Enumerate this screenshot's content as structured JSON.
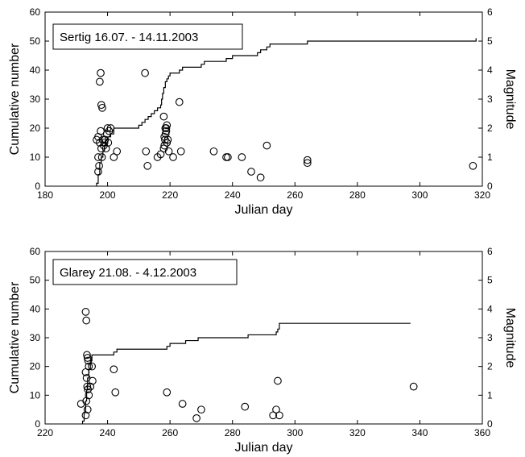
{
  "chart_data": [
    {
      "type": "scatter",
      "title": "Sertig 16.07. - 14.11.2003",
      "xlabel": "Julian day",
      "ylabel": "Cumulative number",
      "y2label": "Magnitude",
      "xlim": [
        180,
        320
      ],
      "ylim": [
        0,
        60
      ],
      "y2lim": [
        0,
        6
      ],
      "xticks": [
        "180",
        "200",
        "220",
        "240",
        "260",
        "280",
        "300",
        "320"
      ],
      "yticks": [
        "0",
        "10",
        "20",
        "30",
        "40",
        "50",
        "60"
      ],
      "y2ticks": [
        "0",
        "1",
        "2",
        "3",
        "4",
        "5",
        "6"
      ],
      "grid": false,
      "legend_box": "top-left",
      "cumulative_step": {
        "x": [
          196.5,
          197,
          197.5,
          198,
          198.5,
          199,
          199.5,
          200,
          201,
          202,
          210,
          211,
          212,
          213,
          214,
          215,
          216,
          217,
          217.3,
          217.6,
          218,
          218.5,
          219,
          219.5,
          220,
          223,
          224,
          230,
          231,
          238,
          240,
          248,
          249,
          251,
          252,
          264,
          264.5,
          318
        ],
        "y": [
          1,
          4,
          8,
          10,
          12,
          14,
          16,
          17,
          18,
          20,
          21,
          22,
          23,
          24,
          25,
          26,
          27,
          28,
          30,
          32,
          34,
          36,
          37,
          38,
          39,
          40,
          41,
          42,
          43,
          44,
          45,
          46,
          47,
          48,
          49,
          50,
          50,
          51
        ]
      },
      "magnitude_events": {
        "x": [
          196.5,
          197,
          197,
          197.3,
          197.5,
          197.8,
          198,
          198.2,
          198.5,
          198.8,
          199,
          199.2,
          199.5,
          199.8,
          200,
          200.2,
          200.5,
          201,
          202,
          203,
          197.5,
          198,
          198.3,
          197.8,
          197,
          212,
          212.3,
          212.8,
          216,
          217,
          218,
          218.2,
          218.4,
          218.6,
          218.8,
          219,
          218,
          218.5,
          219,
          219.3,
          219.6,
          218.2,
          218.8,
          221,
          223,
          223.5,
          234,
          238,
          238.5,
          243,
          246,
          249,
          251,
          264,
          264,
          317
        ],
        "y": [
          1.6,
          1.7,
          1.0,
          0.7,
          1.5,
          1.9,
          1.3,
          1.0,
          1.6,
          1.4,
          1.5,
          1.6,
          1.3,
          1.8,
          2.0,
          1.5,
          1.9,
          2.0,
          1.0,
          1.2,
          3.6,
          2.8,
          2.7,
          3.9,
          0.5,
          3.9,
          1.2,
          0.7,
          1.0,
          1.1,
          1.3,
          1.4,
          1.6,
          1.8,
          2.0,
          2.1,
          2.4,
          2.0,
          1.5,
          1.6,
          1.2,
          1.7,
          1.9,
          1.0,
          2.9,
          1.2,
          1.2,
          1.0,
          1.0,
          1.0,
          0.5,
          0.3,
          1.4,
          0.9,
          0.8,
          0.7
        ]
      }
    },
    {
      "type": "scatter",
      "title": "Glarey 21.08. - 4.12.2003",
      "xlabel": "Julian day",
      "ylabel": "Cumulative number",
      "y2label": "Magnitude",
      "xlim": [
        220,
        360
      ],
      "ylim": [
        0,
        60
      ],
      "y2lim": [
        0,
        6
      ],
      "xticks": [
        "220",
        "240",
        "260",
        "280",
        "300",
        "320",
        "340",
        "360"
      ],
      "yticks": [
        "0",
        "10",
        "20",
        "30",
        "40",
        "50",
        "60"
      ],
      "y2ticks": [
        "0",
        "1",
        "2",
        "3",
        "4",
        "5",
        "6"
      ],
      "grid": false,
      "legend_box": "top-left",
      "cumulative_step": {
        "x": [
          232,
          232.5,
          233,
          233.3,
          233.6,
          234,
          234.5,
          235,
          242,
          243,
          259,
          260,
          265,
          266,
          269,
          270,
          285,
          286,
          294,
          294.5,
          295,
          337
        ],
        "y": [
          1,
          4,
          8,
          12,
          16,
          19,
          22,
          24,
          25,
          26,
          27,
          28,
          29,
          29,
          30,
          30,
          31,
          31,
          32,
          33,
          35,
          35
        ]
      },
      "magnitude_events": {
        "x": [
          231.5,
          233,
          233.2,
          233.4,
          233.6,
          233.8,
          234,
          233,
          233.3,
          233.5,
          233.7,
          234,
          233.2,
          233.6,
          233,
          234.5,
          235,
          235.2,
          242,
          242.5,
          259,
          264,
          268.5,
          270,
          284,
          293,
          294,
          294.5,
          295,
          338
        ],
        "y": [
          0.7,
          3.9,
          3.6,
          2.4,
          2.3,
          2.2,
          2.0,
          1.8,
          1.6,
          1.3,
          1.2,
          1.0,
          0.8,
          0.5,
          0.3,
          1.3,
          2.0,
          1.5,
          1.9,
          1.1,
          1.1,
          0.7,
          0.2,
          0.5,
          0.6,
          0.3,
          0.5,
          1.5,
          0.3,
          1.3
        ]
      }
    }
  ]
}
